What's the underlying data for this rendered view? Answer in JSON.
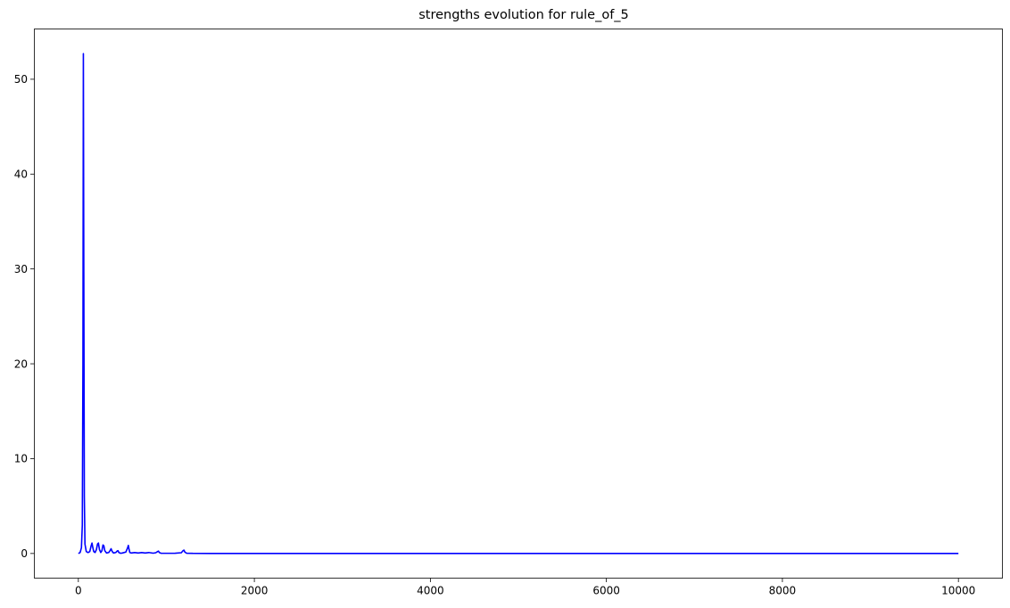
{
  "chart_data": {
    "type": "line",
    "title": "strengths evolution for rule_of_5",
    "xlabel": "",
    "ylabel": "",
    "xlim": [
      -500,
      10500
    ],
    "ylim": [
      -2.6,
      55.3
    ],
    "xticks": [
      0,
      2000,
      4000,
      6000,
      8000,
      10000
    ],
    "xtick_labels": [
      "0",
      "2000",
      "4000",
      "6000",
      "8000",
      "10000"
    ],
    "yticks": [
      0,
      10,
      20,
      30,
      40,
      50
    ],
    "ytick_labels": [
      "0",
      "10",
      "20",
      "30",
      "40",
      "50"
    ],
    "grid": false,
    "legend": "none",
    "series": [
      {
        "color": "#0000ff",
        "x": [
          0,
          20,
          35,
          45,
          52,
          57,
          62,
          68,
          75,
          90,
          110,
          130,
          145,
          155,
          165,
          175,
          190,
          205,
          218,
          228,
          240,
          255,
          268,
          280,
          290,
          300,
          320,
          345,
          360,
          372,
          385,
          400,
          425,
          440,
          450,
          460,
          480,
          500,
          540,
          560,
          568,
          575,
          585,
          600,
          640,
          680,
          720,
          760,
          800,
          850,
          880,
          900,
          910,
          920,
          940,
          1000,
          1100,
          1170,
          1190,
          1200,
          1210,
          1230,
          1300,
          1500,
          2000,
          4000,
          6000,
          8000,
          10000
        ],
        "y": [
          0.0,
          0.1,
          0.6,
          3.0,
          20.0,
          52.7,
          30.0,
          6.0,
          1.0,
          0.2,
          0.1,
          0.2,
          0.8,
          1.1,
          0.6,
          0.2,
          0.1,
          0.4,
          1.0,
          1.1,
          0.4,
          0.1,
          0.3,
          0.9,
          0.8,
          0.3,
          0.05,
          0.1,
          0.3,
          0.5,
          0.2,
          0.05,
          0.1,
          0.25,
          0.3,
          0.1,
          0.02,
          0.05,
          0.15,
          0.6,
          0.85,
          0.5,
          0.1,
          0.05,
          0.1,
          0.05,
          0.1,
          0.05,
          0.1,
          0.03,
          0.08,
          0.2,
          0.25,
          0.1,
          0.02,
          0.02,
          0.03,
          0.08,
          0.3,
          0.35,
          0.15,
          0.03,
          0.01,
          0.0,
          0.0,
          0.0,
          0.0,
          0.0,
          0.0
        ]
      }
    ]
  }
}
